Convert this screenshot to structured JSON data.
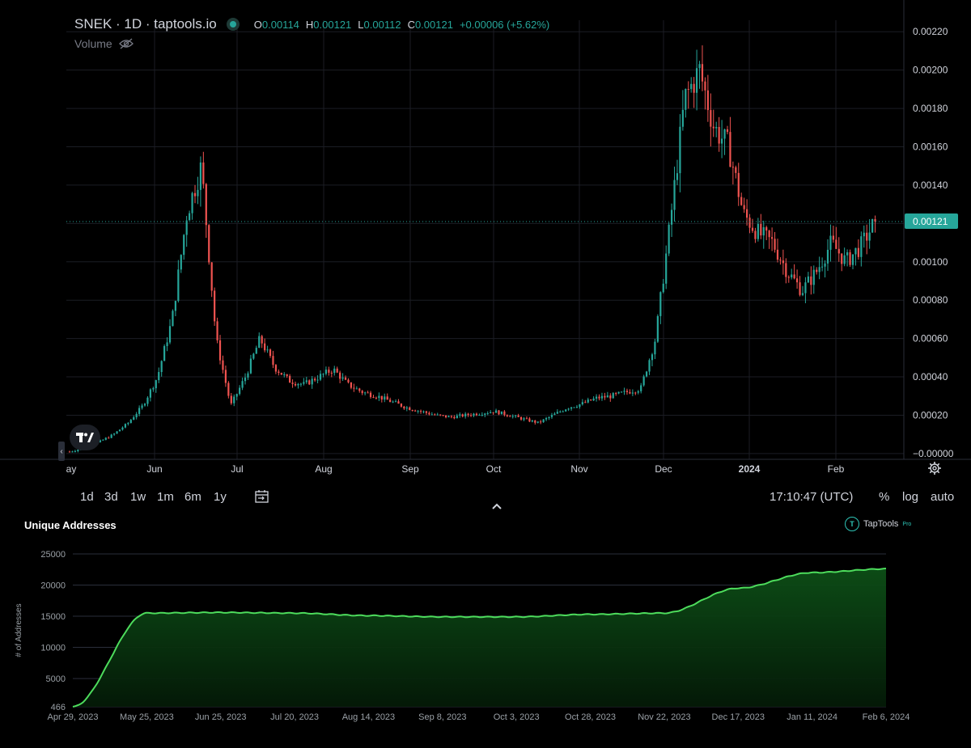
{
  "header": {
    "symbol_line": "SNEK · 1D · taptools.io",
    "open_key": "O",
    "open_val": "0.00114",
    "high_key": "H",
    "high_val": "0.00121",
    "low_key": "L",
    "low_val": "0.00112",
    "close_key": "C",
    "close_val": "0.00121",
    "change": "+0.00006 (+5.62%)",
    "volume_label": "Volume"
  },
  "toolbar": {
    "timeframes": [
      "1d",
      "3d",
      "1w",
      "1m",
      "6m",
      "1y"
    ],
    "clock": "17:10:47 (UTC)",
    "percent_label": "%",
    "log_label": "log",
    "auto_label": "auto"
  },
  "colors": {
    "up": "#26a69a",
    "down": "#ef5350",
    "price_tag": "#26a69a",
    "area_line": "#4ddc5c",
    "area_fill": "#0b3d12"
  },
  "chart_data": [
    {
      "type": "candlestick",
      "title": "SNEK · 1D · taptools.io",
      "x_tick_labels": [
        "ay",
        "Jun",
        "Jul",
        "Aug",
        "Sep",
        "Oct",
        "Nov",
        "Dec",
        "2024",
        "Feb"
      ],
      "y_tick_labels": [
        "0.00220",
        "0.00200",
        "0.00180",
        "0.00160",
        "0.00140",
        "0.00120",
        "0.00100",
        "0.00080",
        "0.00060",
        "0.00040",
        "0.00020",
        "−0.00000"
      ],
      "ylim": [
        -3e-05,
        0.00226
      ],
      "last_price_label": "0.00121",
      "last_price": 0.00121,
      "grid": true,
      "close_series": [
        1e-05,
        3e-05,
        6e-05,
        0.0001,
        0.00016,
        0.00025,
        0.0004,
        0.0007,
        0.00125,
        0.0015,
        0.0006,
        0.00025,
        0.0004,
        0.0006,
        0.00045,
        0.00038,
        0.00036,
        0.0004,
        0.00044,
        0.00036,
        0.00032,
        0.0003,
        0.00027,
        0.00024,
        0.00022,
        0.0002,
        0.00019,
        0.0002,
        0.00021,
        0.00022,
        0.0002,
        0.00018,
        0.00016,
        0.0002,
        0.00024,
        0.00026,
        0.00029,
        0.0003,
        0.00032,
        0.00034,
        0.0006,
        0.0012,
        0.00185,
        0.002,
        0.0017,
        0.0016,
        0.00125,
        0.00115,
        0.0011,
        0.00095,
        0.00085,
        0.00095,
        0.0011,
        0.001,
        0.00108,
        0.00121
      ]
    },
    {
      "type": "area",
      "title": "Unique Addresses",
      "ylabel": "# of Addresses",
      "y_tick_labels": [
        "25000",
        "20000",
        "15000",
        "10000",
        "5000",
        "466"
      ],
      "ylim": [
        466,
        25000
      ],
      "x": [
        "Apr 29, 2023",
        "May 25, 2023",
        "Jun 25, 2023",
        "Jul 20, 2023",
        "Aug 14, 2023",
        "Sep 8, 2023",
        "Oct 3, 2023",
        "Oct 28, 2023",
        "Nov 22, 2023",
        "Dec 17, 2023",
        "Jan 11, 2024",
        "Feb 6, 2024"
      ],
      "series": [
        {
          "values": [
            466,
            15500,
            15600,
            15500,
            15100,
            14900,
            14900,
            15300,
            15500,
            19500,
            22000,
            22600
          ]
        }
      ],
      "grid": true
    }
  ],
  "brand": {
    "name": "TapTools",
    "tier": "Pro",
    "logo_letter": "T"
  }
}
